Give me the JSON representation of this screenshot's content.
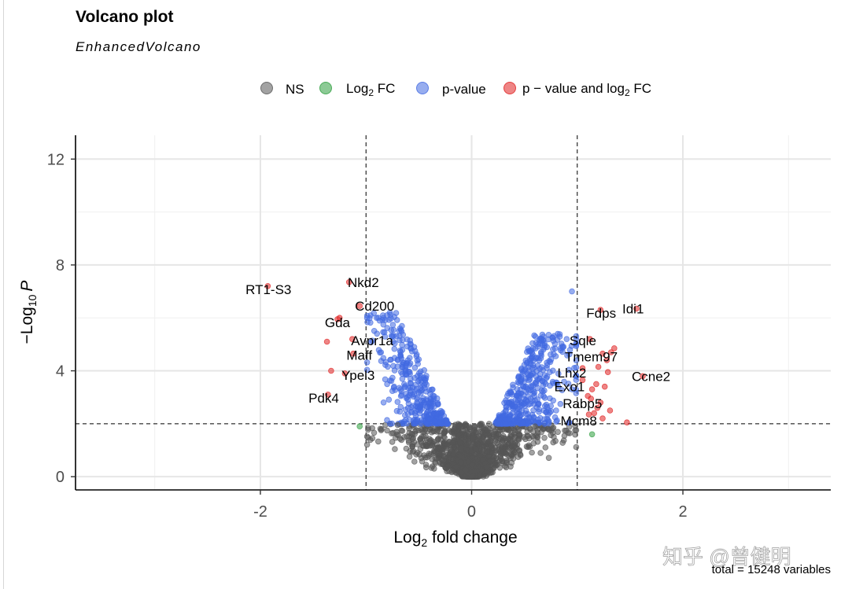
{
  "chart_data": {
    "type": "scatter",
    "title": "Volcano plot",
    "subtitle": "EnhancedVolcano",
    "xlabel": "Log",
    "xlabel_sub": "2",
    "xlabel_tail": " fold change",
    "ylabel": "−Log",
    "ylabel_sub": "10",
    "ylabel_var": "P",
    "xlim": [
      -3.75,
      3.4
    ],
    "ylim": [
      -0.5,
      12.9
    ],
    "x_ticks": [
      -2,
      0,
      2
    ],
    "x_tick_labels": [
      "-2",
      "0",
      "2"
    ],
    "y_ticks": [
      0,
      4,
      8,
      12
    ],
    "y_tick_labels": [
      "0",
      "4",
      "8",
      "12"
    ],
    "x_minor_ticks": [
      -3,
      -1,
      1,
      3
    ],
    "y_minor_ticks": [
      2,
      6,
      10
    ],
    "fc_cutoff": 1.0,
    "p_cutoff_neglog10": 2.0,
    "caption": "total = 15248 variables",
    "legend": [
      {
        "key": "NS",
        "label": "NS",
        "color": "#555555"
      },
      {
        "key": "FC",
        "label": "Log",
        "sub": "2",
        "tail": " FC",
        "color": "#2e9e3e"
      },
      {
        "key": "P",
        "label": "p-value",
        "color": "#4169e1"
      },
      {
        "key": "FC_P",
        "label": "p − value and log",
        "sub": "2",
        "tail": " FC",
        "color": "#e02020"
      }
    ],
    "colors": {
      "NS": "#555555",
      "FC": "#2e9e3e",
      "P": "#4169e1",
      "FC_P": "#e02020"
    },
    "labeled_genes": [
      {
        "gene": "RT1-S3",
        "x": -1.93,
        "y": 7.2
      },
      {
        "gene": "Nkd2",
        "x": -1.16,
        "y": 7.35
      },
      {
        "gene": "Cd200",
        "x": -1.06,
        "y": 6.45
      },
      {
        "gene": "Gda",
        "x": -1.27,
        "y": 5.95
      },
      {
        "gene": "Avpr1a",
        "x": -1.13,
        "y": 5.2
      },
      {
        "gene": "Maff",
        "x": -1.12,
        "y": 4.65
      },
      {
        "gene": "Ypel3",
        "x": -1.2,
        "y": 3.9
      },
      {
        "gene": "Pdk4",
        "x": -1.36,
        "y": 3.1
      },
      {
        "gene": "Fdps",
        "x": 1.22,
        "y": 6.3
      },
      {
        "gene": "Idi1",
        "x": 1.56,
        "y": 6.35
      },
      {
        "gene": "Sqle",
        "x": 1.12,
        "y": 5.2
      },
      {
        "gene": "Tmem97",
        "x": 1.24,
        "y": 4.65
      },
      {
        "gene": "Lhx2",
        "x": 1.05,
        "y": 4.1
      },
      {
        "gene": "Exo1",
        "x": 1.05,
        "y": 3.65
      },
      {
        "gene": "Ccne2",
        "x": 1.62,
        "y": 3.8
      },
      {
        "gene": "Rabp5",
        "x": 1.13,
        "y": 2.95
      },
      {
        "gene": "Mcm8",
        "x": 1.11,
        "y": 2.35
      }
    ],
    "extra_red_points": [
      [
        -1.37,
        5.1
      ],
      [
        -1.25,
        6.0
      ],
      [
        -1.33,
        4.0
      ],
      [
        1.32,
        4.7
      ],
      [
        1.28,
        4.4
      ],
      [
        1.18,
        3.5
      ],
      [
        1.14,
        3.3
      ],
      [
        1.26,
        3.4
      ],
      [
        1.31,
        2.5
      ],
      [
        1.24,
        2.2
      ],
      [
        1.47,
        2.05
      ],
      [
        1.16,
        2.4
      ],
      [
        1.22,
        2.8
      ],
      [
        1.35,
        4.85
      ],
      [
        1.2,
        4.15
      ],
      [
        1.29,
        3.95
      ],
      [
        1.1,
        3.05
      ],
      [
        1.19,
        2.6
      ]
    ],
    "green_points": [
      [
        -1.06,
        1.9
      ],
      [
        1.14,
        1.6
      ]
    ],
    "point_counts": {
      "ns": 1500,
      "p_left": 360,
      "p_right": 420
    },
    "sample_points": [
      [
        0.0,
        0.02
      ],
      [
        0.05,
        0.2
      ],
      [
        -0.06,
        0.25
      ],
      [
        0.2,
        0.9
      ],
      [
        -0.2,
        1.0
      ],
      [
        0.45,
        1.6
      ],
      [
        -0.45,
        1.7
      ],
      [
        0.6,
        1.9
      ],
      [
        -0.7,
        1.95
      ],
      [
        0.8,
        2.5
      ],
      [
        0.95,
        3.3
      ],
      [
        -0.8,
        3.5
      ],
      [
        0.9,
        5.2
      ],
      [
        -0.9,
        6.0
      ],
      [
        0.95,
        7.0
      ],
      [
        -0.75,
        5.3
      ]
    ],
    "watermark": "知乎 @曾健明"
  }
}
